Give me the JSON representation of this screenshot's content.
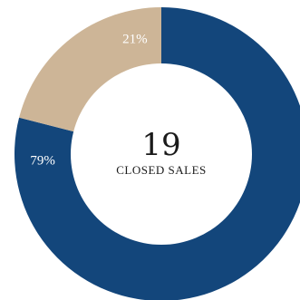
{
  "chart_data": {
    "type": "pie",
    "donut": true,
    "categories": [
      "",
      ""
    ],
    "values": [
      79,
      21
    ],
    "labels": [
      "79%",
      "21%"
    ],
    "colors": [
      "#13467b",
      "#cdb597"
    ],
    "center_value": "19",
    "center_label": "CLOSED SALES"
  }
}
